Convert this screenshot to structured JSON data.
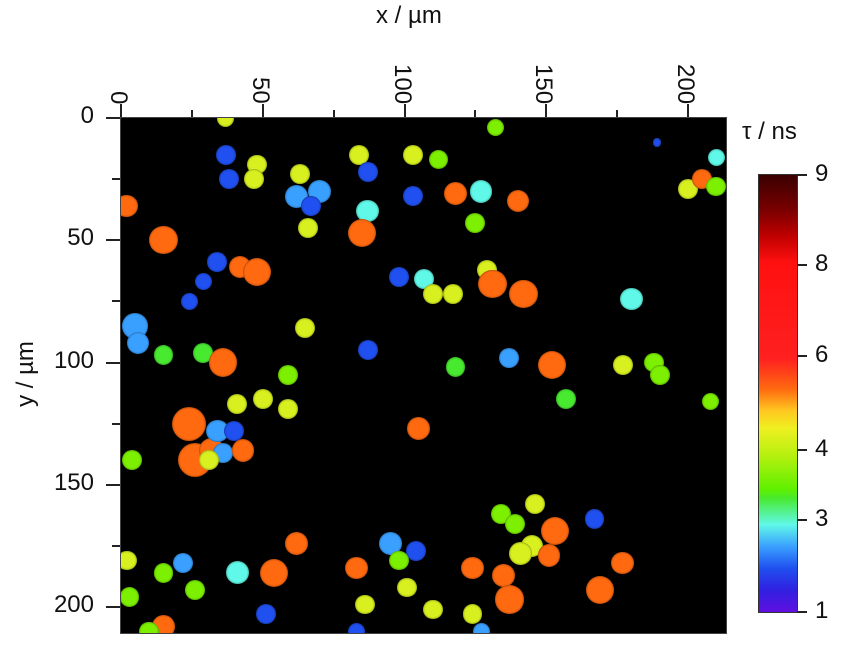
{
  "chart_data": {
    "type": "heatmap",
    "title": "",
    "xlabel": "x / µm",
    "ylabel": "y / µm",
    "xlim": [
      0,
      213
    ],
    "ylim": [
      0,
      211
    ],
    "x_ticks": [
      "0",
      "50",
      "100",
      "150",
      "200"
    ],
    "y_ticks": [
      "0",
      "50",
      "100",
      "150",
      "200"
    ],
    "colorbar": {
      "label": "τ / ns",
      "ticks": [
        "1",
        "3",
        "4",
        "6",
        "8",
        "9"
      ],
      "range": [
        1,
        9
      ],
      "colormap": [
        "#6010e0",
        "#2050f0",
        "#60f8e8",
        "#5ef000",
        "#eef020",
        "#ff6a10",
        "#ff1010",
        "#3a0000"
      ]
    },
    "background": "#000000",
    "description": "Fluorescence lifetime image of cells; each spot colored by lifetime τ (ns)",
    "cells": [
      {
        "x": 37,
        "y": 0,
        "r": 3,
        "tau": 5.0
      },
      {
        "x": 37,
        "y": 15,
        "r": 3.5,
        "tau": 2.7
      },
      {
        "x": 38,
        "y": 25,
        "r": 3.5,
        "tau": 2.7
      },
      {
        "x": 48,
        "y": 19,
        "r": 3.5,
        "tau": 5.0
      },
      {
        "x": 47,
        "y": 25,
        "r": 3.5,
        "tau": 5.0
      },
      {
        "x": 63,
        "y": 23,
        "r": 3.5,
        "tau": 5.0
      },
      {
        "x": 62,
        "y": 32,
        "r": 4,
        "tau": 3.0
      },
      {
        "x": 70,
        "y": 30,
        "r": 4,
        "tau": 3.0
      },
      {
        "x": 67,
        "y": 36,
        "r": 3.5,
        "tau": 2.7
      },
      {
        "x": 66,
        "y": 45,
        "r": 3.5,
        "tau": 4.8
      },
      {
        "x": 2,
        "y": 36,
        "r": 4,
        "tau": 6.0
      },
      {
        "x": 15,
        "y": 50,
        "r": 5,
        "tau": 6.0
      },
      {
        "x": 34,
        "y": 59,
        "r": 3.5,
        "tau": 2.7
      },
      {
        "x": 42,
        "y": 61,
        "r": 4,
        "tau": 6.0
      },
      {
        "x": 48,
        "y": 63,
        "r": 5,
        "tau": 6.0
      },
      {
        "x": 29,
        "y": 67,
        "r": 3,
        "tau": 2.7
      },
      {
        "x": 24,
        "y": 75,
        "r": 3,
        "tau": 2.7
      },
      {
        "x": 5,
        "y": 85,
        "r": 4.5,
        "tau": 3.0
      },
      {
        "x": 6,
        "y": 92,
        "r": 4,
        "tau": 3.0
      },
      {
        "x": 15,
        "y": 97,
        "r": 3.5,
        "tau": 4.0
      },
      {
        "x": 29,
        "y": 96,
        "r": 3.5,
        "tau": 4.0
      },
      {
        "x": 36,
        "y": 100,
        "r": 5,
        "tau": 6.0
      },
      {
        "x": 65,
        "y": 86,
        "r": 3.5,
        "tau": 4.8
      },
      {
        "x": 84,
        "y": 15,
        "r": 3.5,
        "tau": 5.0
      },
      {
        "x": 87,
        "y": 22,
        "r": 3.5,
        "tau": 2.7
      },
      {
        "x": 87,
        "y": 38,
        "r": 4,
        "tau": 3.5
      },
      {
        "x": 85,
        "y": 47,
        "r": 5,
        "tau": 6.0
      },
      {
        "x": 87,
        "y": 95,
        "r": 3.5,
        "tau": 2.7
      },
      {
        "x": 103,
        "y": 15,
        "r": 3.5,
        "tau": 5.0
      },
      {
        "x": 112,
        "y": 17,
        "r": 3.5,
        "tau": 4.2
      },
      {
        "x": 132,
        "y": 4,
        "r": 3,
        "tau": 4.2
      },
      {
        "x": 103,
        "y": 32,
        "r": 3.5,
        "tau": 2.7
      },
      {
        "x": 118,
        "y": 31,
        "r": 4,
        "tau": 6.0
      },
      {
        "x": 127,
        "y": 30,
        "r": 4,
        "tau": 3.5
      },
      {
        "x": 140,
        "y": 34,
        "r": 4,
        "tau": 6.0
      },
      {
        "x": 125,
        "y": 43,
        "r": 3.5,
        "tau": 4.2
      },
      {
        "x": 98,
        "y": 65,
        "r": 3.5,
        "tau": 2.7
      },
      {
        "x": 107,
        "y": 66,
        "r": 3.5,
        "tau": 3.5
      },
      {
        "x": 110,
        "y": 72,
        "r": 3.5,
        "tau": 5.0
      },
      {
        "x": 117,
        "y": 72,
        "r": 3.5,
        "tau": 5.0
      },
      {
        "x": 129,
        "y": 62,
        "r": 3.5,
        "tau": 5.0
      },
      {
        "x": 131,
        "y": 68,
        "r": 5,
        "tau": 6.0
      },
      {
        "x": 142,
        "y": 72,
        "r": 5,
        "tau": 6.0
      },
      {
        "x": 137,
        "y": 98,
        "r": 3.5,
        "tau": 3.2
      },
      {
        "x": 152,
        "y": 101,
        "r": 5,
        "tau": 6.0
      },
      {
        "x": 118,
        "y": 102,
        "r": 3.5,
        "tau": 4.0
      },
      {
        "x": 157,
        "y": 115,
        "r": 3.5,
        "tau": 4.0
      },
      {
        "x": 189,
        "y": 10,
        "r": 1.5,
        "tau": 2.7
      },
      {
        "x": 200,
        "y": 29,
        "r": 3.5,
        "tau": 5.0
      },
      {
        "x": 205,
        "y": 25,
        "r": 3.5,
        "tau": 6.0
      },
      {
        "x": 210,
        "y": 28,
        "r": 3.5,
        "tau": 4.2
      },
      {
        "x": 210,
        "y": 16,
        "r": 3,
        "tau": 3.5
      },
      {
        "x": 180,
        "y": 74,
        "r": 4,
        "tau": 3.5
      },
      {
        "x": 177,
        "y": 101,
        "r": 3.5,
        "tau": 5.0
      },
      {
        "x": 188,
        "y": 100,
        "r": 3.5,
        "tau": 4.2
      },
      {
        "x": 190,
        "y": 105,
        "r": 3.5,
        "tau": 4.2
      },
      {
        "x": 208,
        "y": 116,
        "r": 3,
        "tau": 4.2
      },
      {
        "x": 24,
        "y": 125,
        "r": 6,
        "tau": 6.0
      },
      {
        "x": 26,
        "y": 140,
        "r": 6,
        "tau": 6.0
      },
      {
        "x": 32,
        "y": 136,
        "r": 4.5,
        "tau": 6.0
      },
      {
        "x": 34,
        "y": 128,
        "r": 4,
        "tau": 3.2
      },
      {
        "x": 40,
        "y": 128,
        "r": 3.5,
        "tau": 2.7
      },
      {
        "x": 36,
        "y": 137,
        "r": 3.5,
        "tau": 3.0
      },
      {
        "x": 43,
        "y": 136,
        "r": 4,
        "tau": 6.0
      },
      {
        "x": 31,
        "y": 140,
        "r": 3.5,
        "tau": 5.0
      },
      {
        "x": 4,
        "y": 140,
        "r": 3.5,
        "tau": 4.2
      },
      {
        "x": 41,
        "y": 117,
        "r": 3.5,
        "tau": 5.0
      },
      {
        "x": 50,
        "y": 115,
        "r": 3.5,
        "tau": 5.0
      },
      {
        "x": 59,
        "y": 105,
        "r": 3.5,
        "tau": 4.2
      },
      {
        "x": 59,
        "y": 119,
        "r": 3.5,
        "tau": 4.8
      },
      {
        "x": 105,
        "y": 127,
        "r": 4,
        "tau": 6.0
      },
      {
        "x": 2,
        "y": 181,
        "r": 3.5,
        "tau": 5.0
      },
      {
        "x": 22,
        "y": 182,
        "r": 3.5,
        "tau": 3.0
      },
      {
        "x": 15,
        "y": 186,
        "r": 3.5,
        "tau": 4.2
      },
      {
        "x": 26,
        "y": 193,
        "r": 3.5,
        "tau": 4.2
      },
      {
        "x": 3,
        "y": 196,
        "r": 3.5,
        "tau": 4.2
      },
      {
        "x": 41,
        "y": 186,
        "r": 4,
        "tau": 3.5
      },
      {
        "x": 54,
        "y": 186,
        "r": 5,
        "tau": 6.0
      },
      {
        "x": 62,
        "y": 174,
        "r": 4,
        "tau": 6.0
      },
      {
        "x": 51,
        "y": 203,
        "r": 3.5,
        "tau": 2.7
      },
      {
        "x": 15,
        "y": 208,
        "r": 4,
        "tau": 6.0
      },
      {
        "x": 10,
        "y": 210,
        "r": 3.5,
        "tau": 4.2
      },
      {
        "x": 83,
        "y": 184,
        "r": 4,
        "tau": 6.0
      },
      {
        "x": 95,
        "y": 174,
        "r": 4,
        "tau": 3.0
      },
      {
        "x": 104,
        "y": 177,
        "r": 3.5,
        "tau": 2.7
      },
      {
        "x": 98,
        "y": 181,
        "r": 3.5,
        "tau": 4.2
      },
      {
        "x": 86,
        "y": 199,
        "r": 3.5,
        "tau": 5.0
      },
      {
        "x": 101,
        "y": 192,
        "r": 3.5,
        "tau": 5.0
      },
      {
        "x": 83,
        "y": 210,
        "r": 3,
        "tau": 2.7
      },
      {
        "x": 110,
        "y": 201,
        "r": 3.5,
        "tau": 5.0
      },
      {
        "x": 124,
        "y": 184,
        "r": 4,
        "tau": 6.0
      },
      {
        "x": 134,
        "y": 162,
        "r": 3.5,
        "tau": 4.2
      },
      {
        "x": 139,
        "y": 166,
        "r": 3.5,
        "tau": 4.2
      },
      {
        "x": 146,
        "y": 158,
        "r": 3.5,
        "tau": 5.0
      },
      {
        "x": 153,
        "y": 169,
        "r": 5,
        "tau": 6.0
      },
      {
        "x": 145,
        "y": 175,
        "r": 4,
        "tau": 5.0
      },
      {
        "x": 151,
        "y": 179,
        "r": 4,
        "tau": 6.0
      },
      {
        "x": 141,
        "y": 178,
        "r": 4,
        "tau": 5.0
      },
      {
        "x": 135,
        "y": 187,
        "r": 4,
        "tau": 6.0
      },
      {
        "x": 137,
        "y": 197,
        "r": 5,
        "tau": 6.0
      },
      {
        "x": 167,
        "y": 164,
        "r": 3.5,
        "tau": 2.7
      },
      {
        "x": 169,
        "y": 193,
        "r": 5,
        "tau": 6.0
      },
      {
        "x": 177,
        "y": 182,
        "r": 4,
        "tau": 6.0
      },
      {
        "x": 124,
        "y": 203,
        "r": 3.5,
        "tau": 5.0
      },
      {
        "x": 127,
        "y": 210,
        "r": 3,
        "tau": 3.0
      }
    ]
  }
}
